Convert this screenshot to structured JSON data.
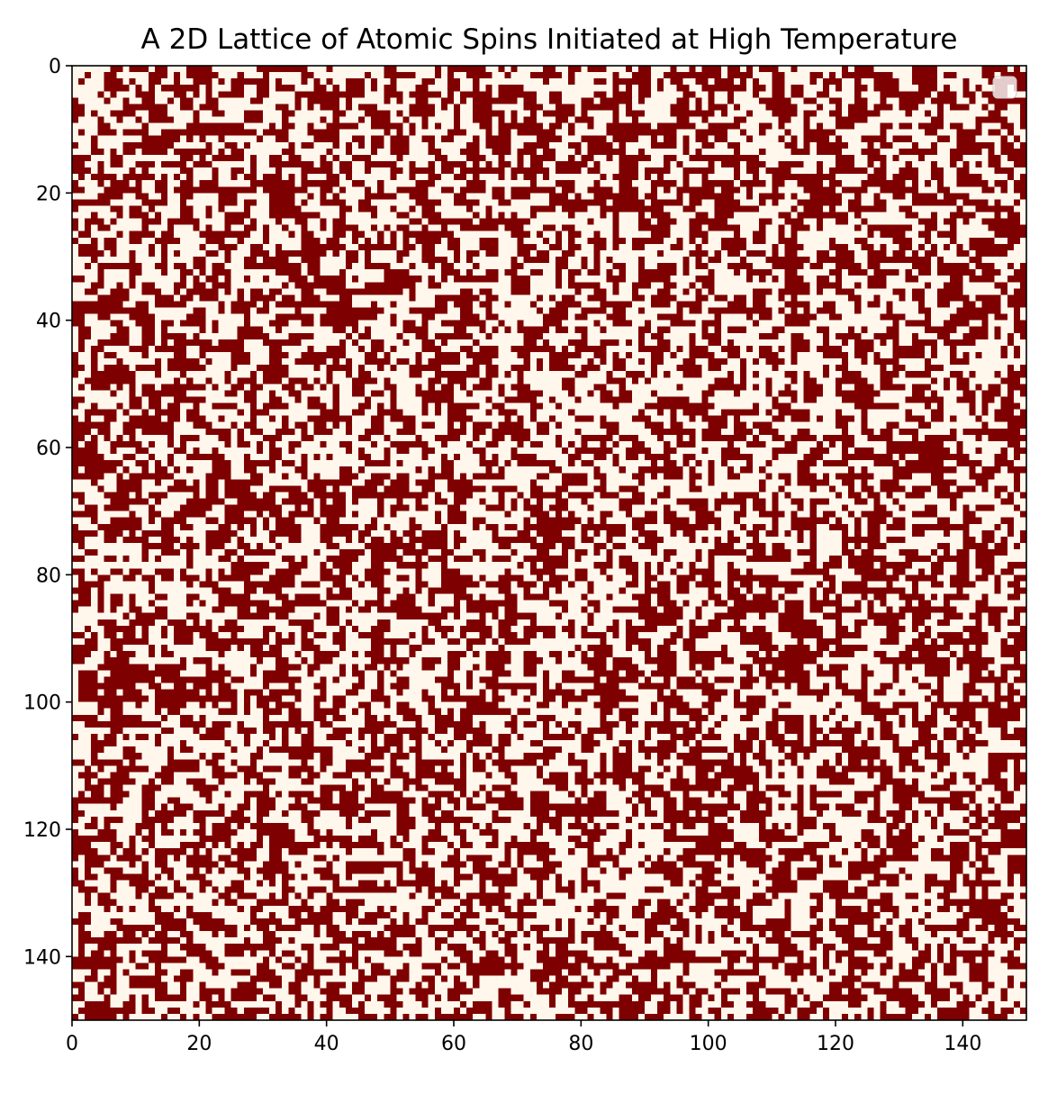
{
  "chart_data": {
    "type": "heatmap",
    "title": "A 2D Lattice of Atomic Spins Initiated at High Temperature",
    "xlabel": "",
    "ylabel": "",
    "grid_size": [
      150,
      150
    ],
    "values": "random spin states, each cell is one of two values",
    "xlim": [
      0,
      150
    ],
    "ylim": [
      150,
      0
    ],
    "x_ticks": [
      0,
      20,
      40,
      60,
      80,
      100,
      120,
      140
    ],
    "y_ticks": [
      0,
      20,
      40,
      60,
      80,
      100,
      120,
      140
    ],
    "x_tick_labels": [
      "0",
      "20",
      "40",
      "60",
      "80",
      "100",
      "120",
      "140"
    ],
    "y_tick_labels": [
      "0",
      "20",
      "40",
      "60",
      "80",
      "100",
      "120",
      "140"
    ],
    "grid": false,
    "legend": "top-right",
    "colors": {
      "spin_up": "#7f0000",
      "spin_down": "#fff7ec"
    }
  }
}
